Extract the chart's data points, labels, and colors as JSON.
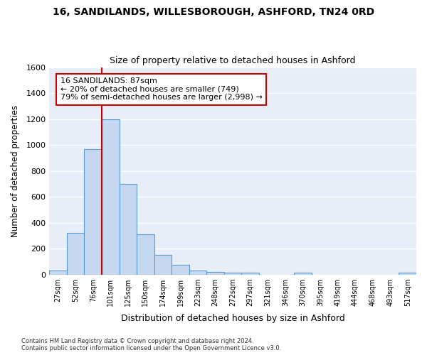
{
  "title1": "16, SANDILANDS, WILLESBOROUGH, ASHFORD, TN24 0RD",
  "title2": "Size of property relative to detached houses in Ashford",
  "xlabel": "Distribution of detached houses by size in Ashford",
  "ylabel": "Number of detached properties",
  "footnote": "Contains HM Land Registry data © Crown copyright and database right 2024.\nContains public sector information licensed under the Open Government Licence v3.0.",
  "bar_labels": [
    "27sqm",
    "52sqm",
    "76sqm",
    "101sqm",
    "125sqm",
    "150sqm",
    "174sqm",
    "199sqm",
    "223sqm",
    "248sqm",
    "272sqm",
    "297sqm",
    "321sqm",
    "346sqm",
    "370sqm",
    "395sqm",
    "419sqm",
    "444sqm",
    "468sqm",
    "493sqm",
    "517sqm"
  ],
  "bar_values": [
    28,
    320,
    970,
    1195,
    700,
    308,
    153,
    75,
    30,
    20,
    15,
    15,
    0,
    0,
    12,
    0,
    0,
    0,
    0,
    0,
    12
  ],
  "bar_color": "#c5d8f0",
  "bar_edge_color": "#5b9bd5",
  "ylim": [
    0,
    1600
  ],
  "yticks": [
    0,
    200,
    400,
    600,
    800,
    1000,
    1200,
    1400,
    1600
  ],
  "vline_x": 2.5,
  "vline_color": "#cc0000",
  "annotation_text": "16 SANDILANDS: 87sqm\n← 20% of detached houses are smaller (749)\n79% of semi-detached houses are larger (2,998) →",
  "annotation_box_color": "#cc0000",
  "background_color": "#ffffff",
  "plot_bg_color": "#e8eef7",
  "grid_color": "#ffffff"
}
